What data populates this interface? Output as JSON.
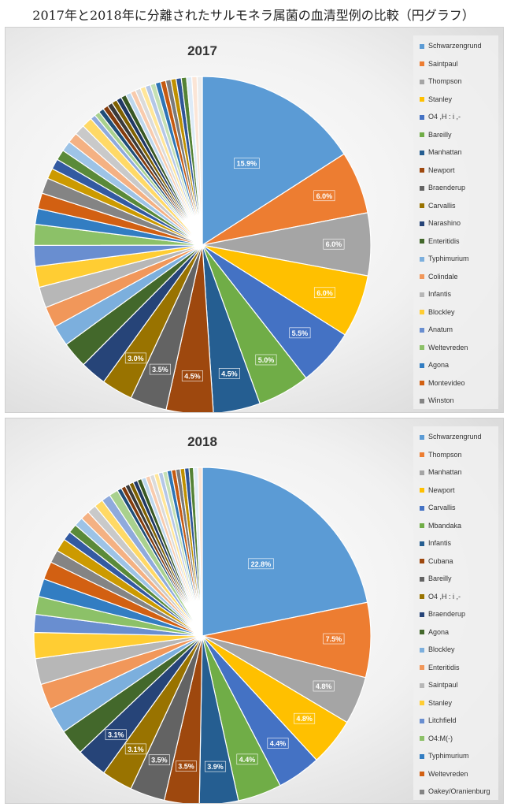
{
  "page_title": "2017年と2018年に分離されたサルモネラ属菌の血清型例の比較（円グラフ）",
  "chart_data": [
    {
      "type": "pie",
      "title": "2017",
      "unit": "%",
      "slices": [
        {
          "name": "Schwarzengrund",
          "value": 15.9,
          "label": "15.9%",
          "color": "#5b9bd5"
        },
        {
          "name": "Saintpaul",
          "value": 6.0,
          "label": "6.0%",
          "color": "#ed7d31"
        },
        {
          "name": "Thompson",
          "value": 6.0,
          "label": "6.0%",
          "color": "#a5a5a5"
        },
        {
          "name": "Stanley",
          "value": 6.0,
          "label": "6.0%",
          "color": "#ffc000"
        },
        {
          "name": "O4 ,H : i ,-",
          "value": 5.5,
          "label": "5.5%",
          "color": "#4472c4"
        },
        {
          "name": "Bareilly",
          "value": 5.0,
          "label": "5.0%",
          "color": "#70ad47"
        },
        {
          "name": "Manhattan",
          "value": 4.5,
          "label": "4.5%",
          "color": "#255e91"
        },
        {
          "name": "Newport",
          "value": 4.5,
          "label": "4.5%",
          "color": "#9e480e"
        },
        {
          "name": "Braenderup",
          "value": 3.5,
          "label": "3.5%",
          "color": "#636363"
        },
        {
          "name": "Carvallis",
          "value": 3.0,
          "label": "3.0%",
          "color": "#997300"
        },
        {
          "name": "Narashino",
          "value": 2.5,
          "label": "",
          "color": "#264478"
        },
        {
          "name": "Enteritidis",
          "value": 2.5,
          "label": "",
          "color": "#43682b"
        },
        {
          "name": "Typhimurium",
          "value": 2.0,
          "label": "",
          "color": "#7cafdd"
        },
        {
          "name": "Colindale",
          "value": 2.0,
          "label": "",
          "color": "#f1975a"
        },
        {
          "name": "Infantis",
          "value": 2.0,
          "label": "",
          "color": "#b7b7b7"
        },
        {
          "name": "Blockley",
          "value": 2.0,
          "label": "",
          "color": "#ffcd33"
        },
        {
          "name": "Anatum",
          "value": 2.0,
          "label": "",
          "color": "#698ed0"
        },
        {
          "name": "Weltevreden",
          "value": 2.0,
          "label": "",
          "color": "#8cc168"
        },
        {
          "name": "Agona",
          "value": 1.5,
          "label": "",
          "color": "#327dc2"
        },
        {
          "name": "Montevideo",
          "value": 1.5,
          "label": "",
          "color": "#d26012"
        },
        {
          "name": "Winston",
          "value": 1.5,
          "label": "",
          "color": "#848484"
        },
        {
          "name": "",
          "value": 1.0,
          "label": "",
          "color": "#cc9a00"
        },
        {
          "name": "",
          "value": 1.0,
          "label": "",
          "color": "#335aa1"
        },
        {
          "name": "",
          "value": 1.0,
          "label": "",
          "color": "#5a8a39"
        },
        {
          "name": "",
          "value": 1.0,
          "label": "",
          "color": "#9dc3e6"
        },
        {
          "name": "",
          "value": 1.0,
          "label": "",
          "color": "#f4b183"
        },
        {
          "name": "",
          "value": 1.0,
          "label": "",
          "color": "#c9c9c9"
        },
        {
          "name": "",
          "value": 1.0,
          "label": "",
          "color": "#ffd966"
        },
        {
          "name": "",
          "value": 0.5,
          "label": "",
          "color": "#8faadc"
        },
        {
          "name": "",
          "value": 0.5,
          "label": "",
          "color": "#a9d18e"
        },
        {
          "name": "",
          "value": 0.5,
          "label": "",
          "color": "#1f4e79"
        },
        {
          "name": "",
          "value": 0.5,
          "label": "",
          "color": "#843c0c"
        },
        {
          "name": "",
          "value": 0.5,
          "label": "",
          "color": "#3a3a3a"
        },
        {
          "name": "",
          "value": 0.5,
          "label": "",
          "color": "#7f6000"
        },
        {
          "name": "",
          "value": 0.5,
          "label": "",
          "color": "#203864"
        },
        {
          "name": "",
          "value": 0.5,
          "label": "",
          "color": "#385723"
        },
        {
          "name": "",
          "value": 0.5,
          "label": "",
          "color": "#bdd7ee"
        },
        {
          "name": "",
          "value": 0.5,
          "label": "",
          "color": "#f8cbad"
        },
        {
          "name": "",
          "value": 0.5,
          "label": "",
          "color": "#dbdbdb"
        },
        {
          "name": "",
          "value": 0.5,
          "label": "",
          "color": "#ffe699"
        },
        {
          "name": "",
          "value": 0.5,
          "label": "",
          "color": "#b4c7e7"
        },
        {
          "name": "",
          "value": 0.5,
          "label": "",
          "color": "#c5e0b4"
        },
        {
          "name": "",
          "value": 0.5,
          "label": "",
          "color": "#2e75b6"
        },
        {
          "name": "",
          "value": 0.5,
          "label": "",
          "color": "#c55a11"
        },
        {
          "name": "",
          "value": 0.5,
          "label": "",
          "color": "#7b7b7b"
        },
        {
          "name": "",
          "value": 0.5,
          "label": "",
          "color": "#bf9000"
        },
        {
          "name": "",
          "value": 0.5,
          "label": "",
          "color": "#2f5597"
        },
        {
          "name": "",
          "value": 0.5,
          "label": "",
          "color": "#548235"
        },
        {
          "name": "",
          "value": 0.5,
          "label": "",
          "color": "#deebf7"
        },
        {
          "name": "",
          "value": 0.5,
          "label": "",
          "color": "#fbe5d6"
        },
        {
          "name": "",
          "value": 0.5,
          "label": "",
          "color": "#ededed"
        }
      ]
    },
    {
      "type": "pie",
      "title": "2018",
      "unit": "%",
      "slices": [
        {
          "name": "Schwarzengrund",
          "value": 22.8,
          "label": "22.8%",
          "color": "#5b9bd5"
        },
        {
          "name": "Thompson",
          "value": 7.5,
          "label": "7.5%",
          "color": "#ed7d31"
        },
        {
          "name": "Manhattan",
          "value": 4.8,
          "label": "4.8%",
          "color": "#a5a5a5"
        },
        {
          "name": "Newport",
          "value": 4.8,
          "label": "4.8%",
          "color": "#ffc000"
        },
        {
          "name": "Carvallis",
          "value": 4.4,
          "label": "4.4%",
          "color": "#4472c4"
        },
        {
          "name": "Mbandaka",
          "value": 4.4,
          "label": "4.4%",
          "color": "#70ad47"
        },
        {
          "name": "Infantis",
          "value": 3.9,
          "label": "3.9%",
          "color": "#255e91"
        },
        {
          "name": "Cubana",
          "value": 3.5,
          "label": "3.5%",
          "color": "#9e480e"
        },
        {
          "name": "Bareilly",
          "value": 3.5,
          "label": "3.5%",
          "color": "#636363"
        },
        {
          "name": "O4 ,H : i ,-",
          "value": 3.1,
          "label": "3.1%",
          "color": "#997300"
        },
        {
          "name": "Braenderup",
          "value": 3.1,
          "label": "3.1%",
          "color": "#264478"
        },
        {
          "name": "Agona",
          "value": 2.6,
          "label": "",
          "color": "#43682b"
        },
        {
          "name": "Blockley",
          "value": 2.6,
          "label": "",
          "color": "#7cafdd"
        },
        {
          "name": "Enteritidis",
          "value": 2.6,
          "label": "",
          "color": "#f1975a"
        },
        {
          "name": "Saintpaul",
          "value": 2.6,
          "label": "",
          "color": "#b7b7b7"
        },
        {
          "name": "Stanley",
          "value": 2.6,
          "label": "",
          "color": "#ffcd33"
        },
        {
          "name": "Litchfield",
          "value": 1.8,
          "label": "",
          "color": "#698ed0"
        },
        {
          "name": "O4:M(-)",
          "value": 1.8,
          "label": "",
          "color": "#8cc168"
        },
        {
          "name": "Typhimurium",
          "value": 1.8,
          "label": "",
          "color": "#327dc2"
        },
        {
          "name": "Weltevreden",
          "value": 1.8,
          "label": "",
          "color": "#d26012"
        },
        {
          "name": "Oakey/Oranienburg",
          "value": 1.3,
          "label": "",
          "color": "#848484"
        },
        {
          "name": "",
          "value": 1.3,
          "label": "",
          "color": "#cc9a00"
        },
        {
          "name": "",
          "value": 0.9,
          "label": "",
          "color": "#335aa1"
        },
        {
          "name": "",
          "value": 0.9,
          "label": "",
          "color": "#5a8a39"
        },
        {
          "name": "",
          "value": 0.9,
          "label": "",
          "color": "#9dc3e6"
        },
        {
          "name": "",
          "value": 0.9,
          "label": "",
          "color": "#f4b183"
        },
        {
          "name": "",
          "value": 0.9,
          "label": "",
          "color": "#c9c9c9"
        },
        {
          "name": "",
          "value": 0.9,
          "label": "",
          "color": "#ffd966"
        },
        {
          "name": "",
          "value": 0.9,
          "label": "",
          "color": "#8faadc"
        },
        {
          "name": "",
          "value": 0.9,
          "label": "",
          "color": "#a9d18e"
        },
        {
          "name": "",
          "value": 0.44,
          "label": "",
          "color": "#1f4e79"
        },
        {
          "name": "",
          "value": 0.44,
          "label": "",
          "color": "#843c0c"
        },
        {
          "name": "",
          "value": 0.44,
          "label": "",
          "color": "#3a3a3a"
        },
        {
          "name": "",
          "value": 0.44,
          "label": "",
          "color": "#7f6000"
        },
        {
          "name": "",
          "value": 0.44,
          "label": "",
          "color": "#203864"
        },
        {
          "name": "",
          "value": 0.44,
          "label": "",
          "color": "#385723"
        },
        {
          "name": "",
          "value": 0.44,
          "label": "",
          "color": "#bdd7ee"
        },
        {
          "name": "",
          "value": 0.44,
          "label": "",
          "color": "#f8cbad"
        },
        {
          "name": "",
          "value": 0.44,
          "label": "",
          "color": "#dbdbdb"
        },
        {
          "name": "",
          "value": 0.44,
          "label": "",
          "color": "#ffe699"
        },
        {
          "name": "",
          "value": 0.44,
          "label": "",
          "color": "#b4c7e7"
        },
        {
          "name": "",
          "value": 0.44,
          "label": "",
          "color": "#c5e0b4"
        },
        {
          "name": "",
          "value": 0.44,
          "label": "",
          "color": "#2e75b6"
        },
        {
          "name": "",
          "value": 0.44,
          "label": "",
          "color": "#c55a11"
        },
        {
          "name": "",
          "value": 0.44,
          "label": "",
          "color": "#7b7b7b"
        },
        {
          "name": "",
          "value": 0.44,
          "label": "",
          "color": "#bf9000"
        },
        {
          "name": "",
          "value": 0.44,
          "label": "",
          "color": "#2f5597"
        },
        {
          "name": "",
          "value": 0.44,
          "label": "",
          "color": "#548235"
        },
        {
          "name": "",
          "value": 0.44,
          "label": "",
          "color": "#deebf7"
        },
        {
          "name": "",
          "value": 0.44,
          "label": "",
          "color": "#fbe5d6"
        }
      ]
    }
  ]
}
